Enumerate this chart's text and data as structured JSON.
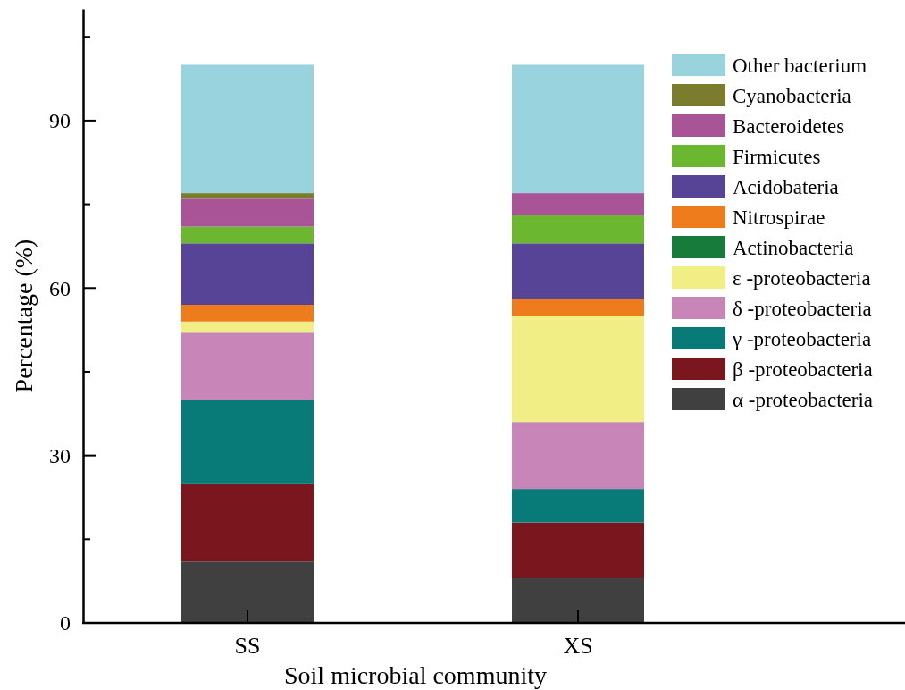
{
  "chart_data": {
    "type": "bar",
    "stacked": true,
    "xlabel": "Soil microbial community",
    "ylabel": "Percentage (%)",
    "categories": [
      "SS",
      "XS"
    ],
    "ylim": [
      0,
      110
    ],
    "yticks": [
      0,
      {
        "value": 15,
        "label": null
      },
      30,
      {
        "value": 45,
        "label": null
      },
      60,
      {
        "value": 75,
        "label": null
      },
      90,
      {
        "value": 105,
        "label": null
      }
    ],
    "legend": "top right",
    "series": [
      {
        "name": "α -proteobacteria",
        "color": "#404040",
        "values": [
          11,
          8
        ]
      },
      {
        "name": "β -proteobacteria",
        "color": "#7a171e",
        "values": [
          14,
          10
        ]
      },
      {
        "name": "γ -proteobacteria",
        "color": "#087b79",
        "values": [
          15,
          6
        ]
      },
      {
        "name": "δ -proteobacteria",
        "color": "#c886b8",
        "values": [
          12,
          12
        ]
      },
      {
        "name": "ε -proteobacteria",
        "color": "#f2ee86",
        "values": [
          2,
          19
        ]
      },
      {
        "name": "Actinobacteria",
        "color": "#177c3b",
        "values": [
          0,
          0
        ]
      },
      {
        "name": "Nitrospirae",
        "color": "#ee7b1c",
        "values": [
          3,
          3
        ]
      },
      {
        "name": "Acidobateria",
        "color": "#574497",
        "values": [
          11,
          10
        ]
      },
      {
        "name": "Firmicutes",
        "color": "#6bb72f",
        "values": [
          3,
          5
        ]
      },
      {
        "name": "Bacteroidetes",
        "color": "#a95496",
        "values": [
          5,
          4
        ]
      },
      {
        "name": "Cyanobacteria",
        "color": "#7c7c2e",
        "values": [
          1,
          0
        ]
      },
      {
        "name": "Other bacterium",
        "color": "#99d4de",
        "values": [
          23,
          23
        ]
      }
    ]
  }
}
